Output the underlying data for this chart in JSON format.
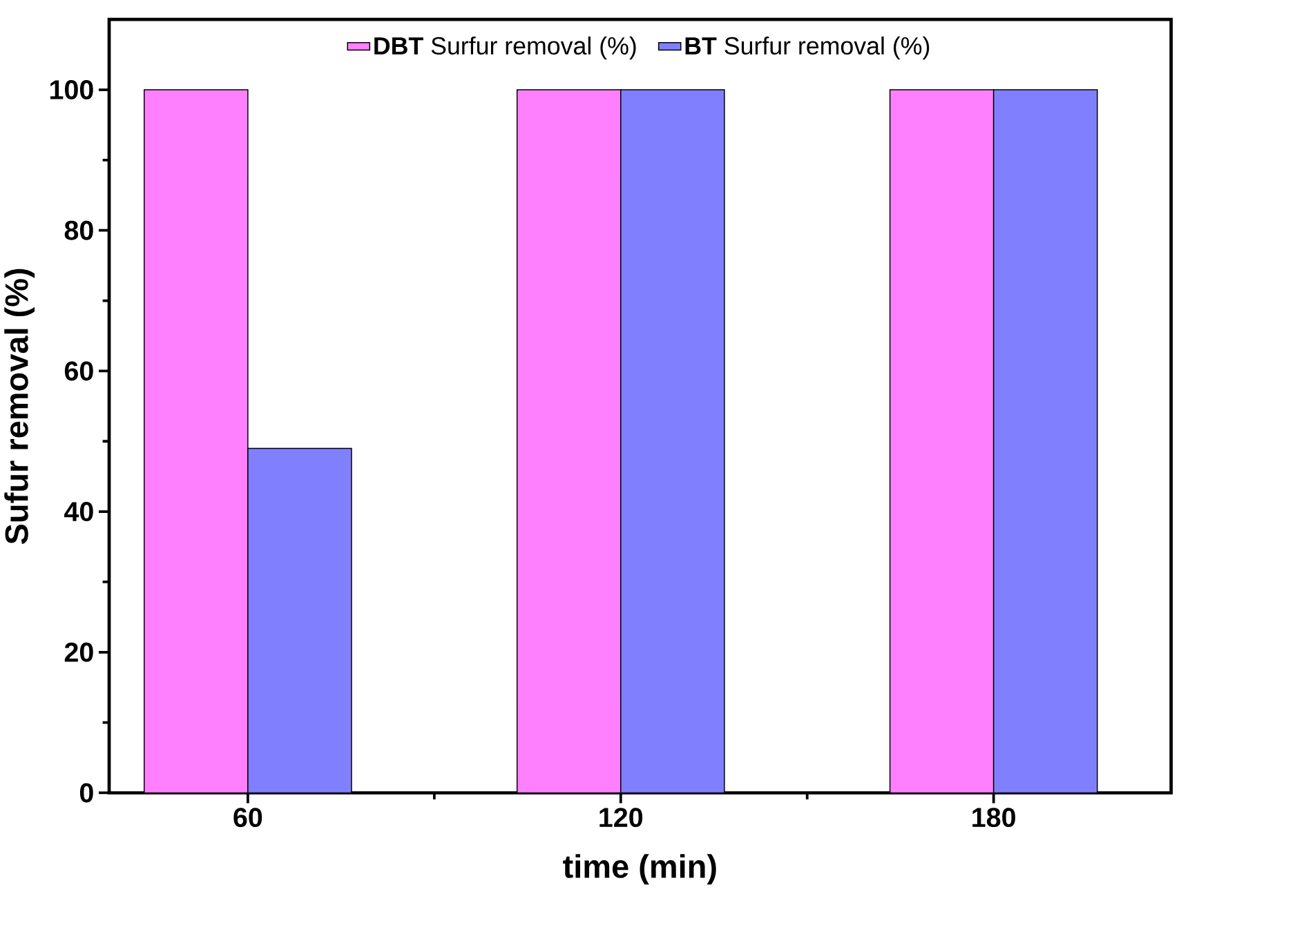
{
  "chart_data": {
    "type": "bar",
    "xlabel": "time (min)",
    "ylabel": "Sufur removal (%)",
    "categories": [
      "60",
      "120",
      "180"
    ],
    "series": [
      {
        "name": "**DBT** Surfur removal (%)",
        "color": "#ff80ff",
        "values": [
          100,
          100,
          100
        ]
      },
      {
        "name": "**BT** Surfur removal (%)",
        "color": "#8080ff",
        "values": [
          49,
          100,
          100
        ]
      }
    ],
    "ylim": [
      0,
      110
    ],
    "yticks": [
      0,
      20,
      40,
      60,
      80,
      100
    ],
    "grid": false,
    "legend": "top"
  }
}
